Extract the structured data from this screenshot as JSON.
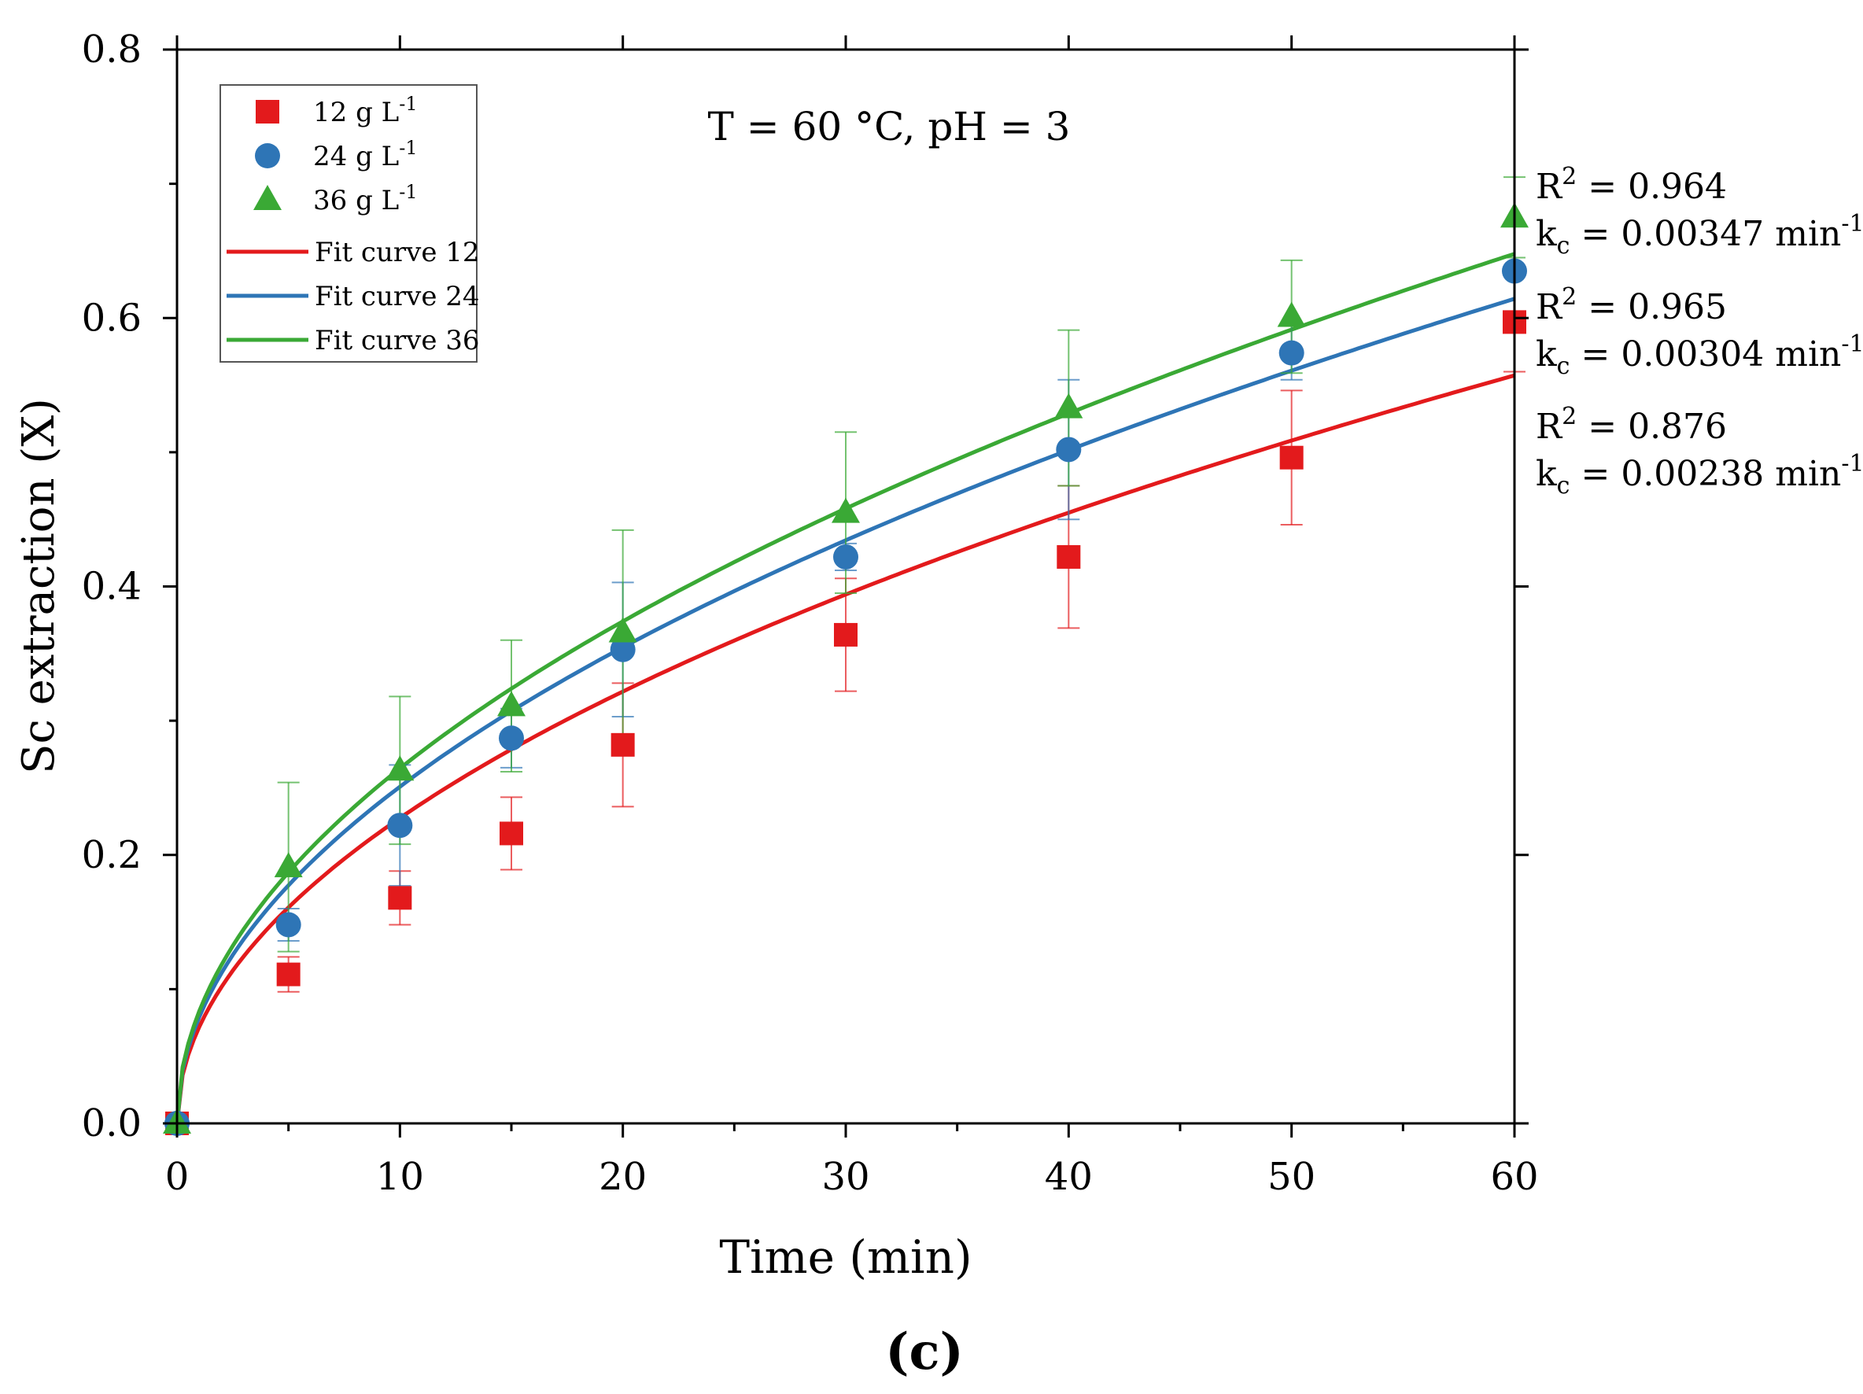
{
  "chart_data": {
    "type": "scatter",
    "title": "T = 60 °C, pH = 3",
    "xlabel": "Time (min)",
    "ylabel": "Sc extraction (X)",
    "xlim": [
      0,
      60
    ],
    "ylim": [
      0,
      0.8
    ],
    "x_ticks": [
      0,
      10,
      20,
      30,
      40,
      50,
      60
    ],
    "x_tick_labels": [
      "0",
      "10",
      "20",
      "30",
      "40",
      "50",
      "60"
    ],
    "y_ticks": [
      0,
      0.2,
      0.4,
      0.6,
      0.8
    ],
    "y_tick_labels": [
      "0.0",
      "0.2",
      "0.4",
      "0.6",
      "0.8"
    ],
    "grid": false,
    "legend_position": "top-left",
    "panel_label": "(c)",
    "series": [
      {
        "name": "12 g L-1",
        "legend_text": "12 g L",
        "legend_sup": "-1",
        "marker": "square",
        "color": "#e31a1c",
        "x": [
          0,
          5,
          10,
          15,
          20,
          30,
          40,
          50,
          60
        ],
        "y": [
          0.0,
          0.111,
          0.168,
          0.216,
          0.282,
          0.364,
          0.422,
          0.496,
          0.597
        ],
        "err": [
          0.0,
          0.013,
          0.02,
          0.027,
          0.046,
          0.042,
          0.053,
          0.05,
          0.037
        ]
      },
      {
        "name": "24 g L-1",
        "legend_text": "24 g L",
        "legend_sup": "-1",
        "marker": "circle",
        "color": "#2e75b6",
        "x": [
          0,
          5,
          10,
          15,
          20,
          30,
          40,
          50,
          60
        ],
        "y": [
          0.0,
          0.148,
          0.222,
          0.287,
          0.353,
          0.422,
          0.502,
          0.574,
          0.635
        ],
        "err": [
          0.0,
          0.012,
          0.045,
          0.022,
          0.05,
          0.01,
          0.052,
          0.02,
          0.0
        ]
      },
      {
        "name": "36 g L-1",
        "legend_text": "36 g L",
        "legend_sup": "-1",
        "marker": "triangle",
        "color": "#3aa935",
        "x": [
          0,
          5,
          10,
          15,
          20,
          30,
          40,
          50,
          60
        ],
        "y": [
          0.0,
          0.191,
          0.263,
          0.311,
          0.366,
          0.455,
          0.533,
          0.601,
          0.675
        ],
        "err": [
          0.0,
          0.063,
          0.055,
          0.049,
          0.076,
          0.06,
          0.058,
          0.042,
          0.03
        ]
      }
    ],
    "fits": [
      {
        "name": "Fit curve 12",
        "color": "#e31a1c",
        "k": 0.07194
      },
      {
        "name": "Fit curve 24",
        "color": "#2e75b6",
        "k": 0.07931
      },
      {
        "name": "Fit curve 36",
        "color": "#3aa935",
        "k": 0.08363
      }
    ],
    "fit_annotations": [
      {
        "r2_label": "R",
        "r2_sup": "2",
        "r2_value": " = 0.964",
        "k_label": "k",
        "k_sub": "c",
        "k_value": " = 0.00347 min",
        "k_sup": "-1"
      },
      {
        "r2_label": "R",
        "r2_sup": "2",
        "r2_value": " = 0.965",
        "k_label": "k",
        "k_sub": "c",
        "k_value": " = 0.00304 min",
        "k_sup": "-1"
      },
      {
        "r2_label": "R",
        "r2_sup": "2",
        "r2_value": " = 0.876",
        "k_label": "k",
        "k_sub": "c",
        "k_value": " = 0.00238 min",
        "k_sup": "-1"
      }
    ]
  }
}
